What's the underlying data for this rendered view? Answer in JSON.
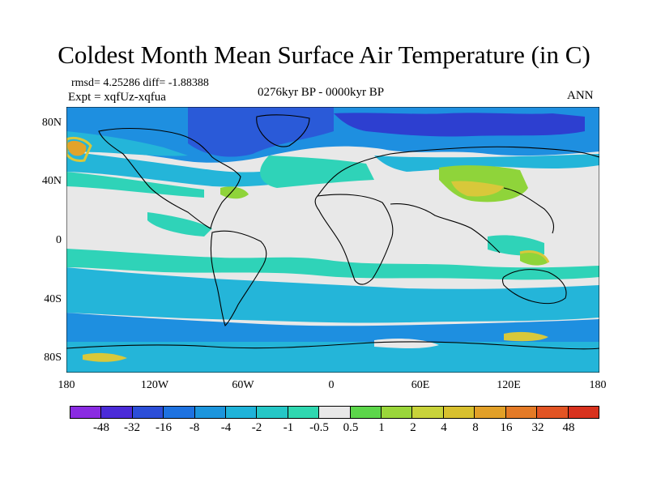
{
  "title": "Coldest Month Mean Surface Air Temperature (in C)",
  "stats_line": "rmsd= 4.25286 diff= -1.88388",
  "expt_line": "Expt = xqfUz-xqfua",
  "period": "0276kyr BP - 0000kyr BP",
  "season": "ANN",
  "colors": {
    "neutral": "#e8e8e8",
    "ocean_light": "#2fd3b8",
    "ocean_mid": "#24b5d9",
    "ocean_blue": "#1e8fe0",
    "polar_blue": "#2a5ad8",
    "deep_blue": "#2d3fd0",
    "green": "#8fd43a",
    "yellow": "#d8c83a",
    "orange": "#e2a32a",
    "coast": "#000000"
  },
  "axes": {
    "lat_ticks": [
      "80N",
      "40N",
      "0",
      "40S",
      "80S"
    ],
    "lon_ticks": [
      "180",
      "120W",
      "60W",
      "0",
      "60E",
      "120E",
      "180"
    ]
  },
  "legend": {
    "colors": [
      "#8a2be2",
      "#4b2bd8",
      "#2c4ed8",
      "#1e72e0",
      "#1c95dc",
      "#1fb3d9",
      "#25c7c6",
      "#2fd7b0",
      "#e8e8e8",
      "#5cd64a",
      "#9ad63a",
      "#c8d33a",
      "#d8c02e",
      "#e2a028",
      "#e47a26",
      "#e25424",
      "#d8321e"
    ],
    "labels": [
      "-48",
      "-32",
      "-16",
      "-8",
      "-4",
      "-2",
      "-1",
      "-0.5",
      "0.5",
      "1",
      "2",
      "4",
      "8",
      "16",
      "32",
      "48"
    ]
  }
}
